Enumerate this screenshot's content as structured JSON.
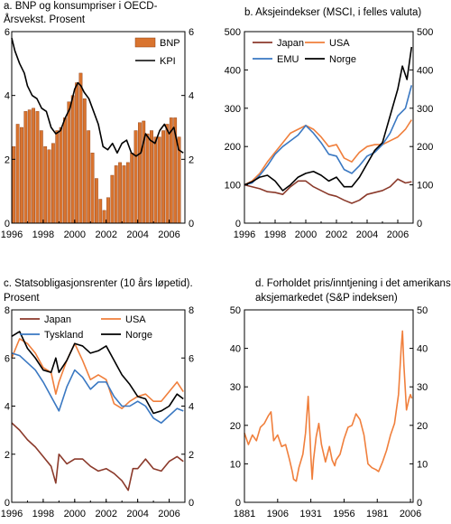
{
  "chart_data": [
    {
      "id": "a",
      "type": "bar+line",
      "title_lines": [
        "a. BNP og konsumpriser i OECD-",
        "Årsvekst. Prosent"
      ],
      "xlim": [
        1996,
        2007
      ],
      "ylim": [
        0,
        6
      ],
      "y_ticks": [
        0,
        2,
        4,
        6
      ],
      "x_tick_labels": [
        "1996",
        "1998",
        "2000",
        "2002",
        "2004",
        "2006"
      ],
      "legend_position": "top-right",
      "colors": {
        "bar": "#d9742f",
        "bar_edge": "#8a3a10",
        "line": "#000000"
      },
      "series": [
        {
          "name": "BNP",
          "type": "bar",
          "x": [
            1996.13,
            1996.38,
            1996.63,
            1996.88,
            1997.13,
            1997.38,
            1997.63,
            1997.88,
            1998.13,
            1998.38,
            1998.63,
            1998.88,
            1999.13,
            1999.38,
            1999.63,
            1999.88,
            2000.13,
            2000.38,
            2000.63,
            2000.88,
            2001.13,
            2001.38,
            2001.63,
            2001.88,
            2002.13,
            2002.38,
            2002.63,
            2002.88,
            2003.13,
            2003.38,
            2003.63,
            2003.88,
            2004.13,
            2004.38,
            2004.63,
            2004.88,
            2005.13,
            2005.38,
            2005.63,
            2005.88,
            2006.13,
            2006.38,
            2006.63
          ],
          "values": [
            2.4,
            3.1,
            3.0,
            3.5,
            3.55,
            3.6,
            3.5,
            2.9,
            2.4,
            2.3,
            2.5,
            2.9,
            3.0,
            3.3,
            3.8,
            4.0,
            4.4,
            4.7,
            3.9,
            2.9,
            2.2,
            1.4,
            0.75,
            0.4,
            0.8,
            1.5,
            1.8,
            1.9,
            1.8,
            1.9,
            2.2,
            2.9,
            3.15,
            3.2,
            2.8,
            2.9,
            2.7,
            2.7,
            2.9,
            3.1,
            3.3,
            3.3,
            2.7
          ]
        },
        {
          "name": "KPI",
          "type": "line",
          "x": [
            1996.0,
            1996.2,
            1996.5,
            1996.8,
            1997.0,
            1997.3,
            1997.6,
            1997.9,
            1998.2,
            1998.5,
            1998.8,
            1999.1,
            1999.4,
            1999.7,
            2000.0,
            2000.2,
            2000.4,
            2000.6,
            2000.9,
            2001.2,
            2001.5,
            2001.8,
            2002.1,
            2002.4,
            2002.7,
            2003.0,
            2003.3,
            2003.6,
            2003.9,
            2004.2,
            2004.5,
            2004.8,
            2005.1,
            2005.4,
            2005.7,
            2006.0,
            2006.3,
            2006.6,
            2006.9
          ],
          "values": [
            5.8,
            5.4,
            5.0,
            4.7,
            4.3,
            4.0,
            3.9,
            3.6,
            3.5,
            3.0,
            2.8,
            2.9,
            3.3,
            3.6,
            4.2,
            4.4,
            4.3,
            4.1,
            3.9,
            3.5,
            3.1,
            2.4,
            2.3,
            2.5,
            2.2,
            2.5,
            2.6,
            2.2,
            2.1,
            2.2,
            2.8,
            2.6,
            2.5,
            2.9,
            3.1,
            2.8,
            3.0,
            2.3,
            2.2
          ]
        }
      ]
    },
    {
      "id": "b",
      "type": "line",
      "title_lines": [
        "b. Aksjeindekser (MSCI, i felles valuta)"
      ],
      "xlim": [
        1996,
        2007
      ],
      "ylim": [
        0,
        500
      ],
      "y_ticks": [
        0,
        100,
        200,
        300,
        400,
        500
      ],
      "x_tick_labels": [
        "1996",
        "1998",
        "2000",
        "2002",
        "2004",
        "2006"
      ],
      "legend_position": "top-left",
      "series": [
        {
          "name": "Japan",
          "color": "#8b3a2b",
          "x": [
            1996.0,
            1996.5,
            1997.0,
            1997.5,
            1998.0,
            1998.5,
            1999.0,
            1999.5,
            2000.0,
            2000.5,
            2001.0,
            2001.5,
            2002.0,
            2002.5,
            2003.0,
            2003.5,
            2004.0,
            2004.5,
            2005.0,
            2005.5,
            2006.0,
            2006.5,
            2006.9
          ],
          "values": [
            100,
            95,
            90,
            82,
            80,
            75,
            95,
            110,
            110,
            95,
            85,
            75,
            70,
            60,
            52,
            60,
            75,
            80,
            85,
            95,
            115,
            105,
            108
          ]
        },
        {
          "name": "USA",
          "color": "#f07f3c",
          "x": [
            1996.0,
            1996.5,
            1997.0,
            1997.5,
            1998.0,
            1998.5,
            1999.0,
            1999.5,
            2000.0,
            2000.5,
            2001.0,
            2001.5,
            2002.0,
            2002.5,
            2003.0,
            2003.5,
            2004.0,
            2004.5,
            2005.0,
            2005.5,
            2006.0,
            2006.5,
            2006.9
          ],
          "values": [
            100,
            110,
            130,
            160,
            185,
            210,
            235,
            245,
            255,
            245,
            225,
            200,
            205,
            170,
            160,
            185,
            200,
            205,
            205,
            215,
            225,
            245,
            270
          ]
        },
        {
          "name": "EMU",
          "color": "#3a78c2",
          "x": [
            1996.0,
            1996.5,
            1997.0,
            1997.5,
            1998.0,
            1998.5,
            1999.0,
            1999.5,
            2000.0,
            2000.5,
            2001.0,
            2001.5,
            2002.0,
            2002.5,
            2003.0,
            2003.5,
            2004.0,
            2004.5,
            2005.0,
            2005.5,
            2006.0,
            2006.5,
            2006.9
          ],
          "values": [
            100,
            105,
            125,
            150,
            180,
            200,
            215,
            230,
            255,
            235,
            210,
            180,
            175,
            140,
            130,
            150,
            175,
            185,
            205,
            235,
            280,
            300,
            360
          ]
        },
        {
          "name": "Norge",
          "color": "#000000",
          "x": [
            1996.0,
            1996.5,
            1997.0,
            1997.5,
            1998.0,
            1998.5,
            1999.0,
            1999.5,
            2000.0,
            2000.5,
            2001.0,
            2001.5,
            2002.0,
            2002.5,
            2003.0,
            2003.5,
            2004.0,
            2004.5,
            2005.0,
            2005.5,
            2006.0,
            2006.3,
            2006.6,
            2006.9
          ],
          "values": [
            100,
            108,
            120,
            125,
            110,
            85,
            100,
            120,
            130,
            135,
            125,
            110,
            120,
            95,
            95,
            120,
            155,
            190,
            210,
            280,
            350,
            410,
            375,
            460
          ]
        }
      ]
    },
    {
      "id": "c",
      "type": "line",
      "title_lines": [
        "c. Statsobligasjonsrenter (10 års løpetid).",
        "Prosent"
      ],
      "xlim": [
        1996,
        2007
      ],
      "ylim": [
        0,
        8
      ],
      "y_ticks": [
        0,
        2,
        4,
        6,
        8
      ],
      "x_tick_labels": [
        "1996",
        "1998",
        "2000",
        "2002",
        "2004",
        "2006"
      ],
      "legend_position": "top-center",
      "series": [
        {
          "name": "Japan",
          "color": "#8b3a2b",
          "x": [
            1996.0,
            1996.5,
            1997.0,
            1997.5,
            1998.0,
            1998.5,
            1998.8,
            1999.0,
            1999.5,
            2000.0,
            2000.5,
            2001.0,
            2001.5,
            2002.0,
            2002.5,
            2003.0,
            2003.4,
            2003.7,
            2004.0,
            2004.5,
            2005.0,
            2005.5,
            2006.0,
            2006.5,
            2006.9
          ],
          "values": [
            3.3,
            3.0,
            2.6,
            2.3,
            1.9,
            1.5,
            0.8,
            2.0,
            1.6,
            1.8,
            1.8,
            1.5,
            1.3,
            1.4,
            1.2,
            0.9,
            0.5,
            1.4,
            1.4,
            1.8,
            1.4,
            1.3,
            1.7,
            1.9,
            1.7
          ]
        },
        {
          "name": "USA",
          "color": "#f07f3c",
          "x": [
            1996.0,
            1996.5,
            1997.0,
            1997.5,
            1998.0,
            1998.5,
            1998.8,
            1999.0,
            1999.5,
            2000.0,
            2000.5,
            2001.0,
            2001.5,
            2002.0,
            2002.5,
            2003.0,
            2003.5,
            2004.0,
            2004.5,
            2005.0,
            2005.5,
            2006.0,
            2006.5,
            2006.9
          ],
          "values": [
            6.0,
            6.8,
            6.6,
            6.2,
            5.6,
            5.4,
            4.5,
            5.0,
            5.9,
            6.6,
            5.9,
            5.1,
            5.3,
            5.1,
            4.1,
            3.9,
            4.2,
            4.4,
            4.5,
            4.2,
            4.2,
            4.6,
            5.0,
            4.6
          ]
        },
        {
          "name": "Tyskland",
          "color": "#3a78c2",
          "x": [
            1996.0,
            1996.5,
            1997.0,
            1997.5,
            1998.0,
            1998.5,
            1999.0,
            1999.5,
            2000.0,
            2000.5,
            2001.0,
            2001.5,
            2002.0,
            2002.5,
            2003.0,
            2003.5,
            2004.0,
            2004.5,
            2005.0,
            2005.5,
            2006.0,
            2006.5,
            2006.9
          ],
          "values": [
            6.2,
            6.1,
            5.8,
            5.5,
            5.0,
            4.4,
            3.8,
            4.8,
            5.5,
            5.2,
            4.7,
            5.0,
            5.0,
            4.4,
            4.0,
            4.0,
            4.2,
            4.0,
            3.5,
            3.3,
            3.6,
            3.9,
            3.8
          ]
        },
        {
          "name": "Norge",
          "color": "#000000",
          "x": [
            1996.0,
            1996.5,
            1997.0,
            1997.5,
            1998.0,
            1998.5,
            1998.8,
            1999.0,
            1999.5,
            2000.0,
            2000.5,
            2001.0,
            2001.5,
            2002.0,
            2002.5,
            2003.0,
            2003.5,
            2004.0,
            2004.5,
            2005.0,
            2005.5,
            2006.0,
            2006.5,
            2006.9
          ],
          "values": [
            6.9,
            7.1,
            6.4,
            6.0,
            5.5,
            5.4,
            6.0,
            5.4,
            5.9,
            6.6,
            6.5,
            6.2,
            6.3,
            6.5,
            5.9,
            5.3,
            4.9,
            4.4,
            4.3,
            3.7,
            3.8,
            4.0,
            4.5,
            4.3
          ]
        }
      ]
    },
    {
      "id": "d",
      "type": "line",
      "title_lines": [
        "d. Forholdet pris/inntjening i det amerikanske",
        "aksjemarkedet (S&P indeksen)"
      ],
      "xlim": [
        1881,
        2008
      ],
      "ylim": [
        0,
        50
      ],
      "y_ticks": [
        0,
        10,
        20,
        30,
        40,
        50
      ],
      "x_ticks": [
        1881,
        1906,
        1931,
        1956,
        1981,
        2006
      ],
      "x_tick_labels": [
        "1881",
        "1906",
        "1931",
        "1956",
        "1981",
        "2006"
      ],
      "series": [
        {
          "name": "",
          "color": "#f07f3c",
          "x": [
            1881,
            1884,
            1887,
            1890,
            1893,
            1896,
            1899,
            1901,
            1903,
            1906,
            1909,
            1912,
            1915,
            1917,
            1918,
            1920,
            1922,
            1925,
            1927,
            1929,
            1930,
            1931,
            1932,
            1933,
            1935,
            1937,
            1939,
            1942,
            1945,
            1947,
            1949,
            1950,
            1953,
            1956,
            1959,
            1962,
            1965,
            1968,
            1971,
            1974,
            1977,
            1980,
            1982,
            1985,
            1988,
            1991,
            1994,
            1997,
            1999,
            2000,
            2001,
            2003,
            2005,
            2006,
            2007
          ],
          "values": [
            18.0,
            15.0,
            17.5,
            16.0,
            19.5,
            20.5,
            22.5,
            23.5,
            16.0,
            17.5,
            14.5,
            15.0,
            11.0,
            8.0,
            6.0,
            5.5,
            9.0,
            12.5,
            18.0,
            27.5,
            20.0,
            12.0,
            6.0,
            11.0,
            17.0,
            20.5,
            15.0,
            10.5,
            14.5,
            11.0,
            9.5,
            11.0,
            12.5,
            16.5,
            19.5,
            20.0,
            23.0,
            21.5,
            17.5,
            10.0,
            9.0,
            8.5,
            8.0,
            10.5,
            13.5,
            17.5,
            20.5,
            28.0,
            40.0,
            44.5,
            36.0,
            24.0,
            27.0,
            28.0,
            27.0
          ]
        }
      ]
    }
  ]
}
